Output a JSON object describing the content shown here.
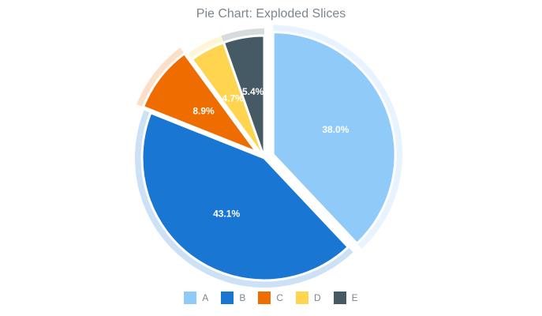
{
  "chart_data": {
    "type": "pie",
    "title": "Pie Chart: Exploded Slices",
    "categories": [
      "A",
      "B",
      "C",
      "D",
      "E"
    ],
    "values": [
      38.0,
      43.1,
      8.9,
      4.7,
      5.4
    ],
    "labels": [
      "38.0%",
      "43.1%",
      "8.9%",
      "4.7%",
      "5.4%"
    ],
    "colors": [
      "#90caf9",
      "#1976d2",
      "#ef6c00",
      "#ffd54f",
      "#455a64"
    ],
    "exploded": [
      true,
      false,
      true,
      false,
      false
    ],
    "legend_position": "bottom"
  }
}
